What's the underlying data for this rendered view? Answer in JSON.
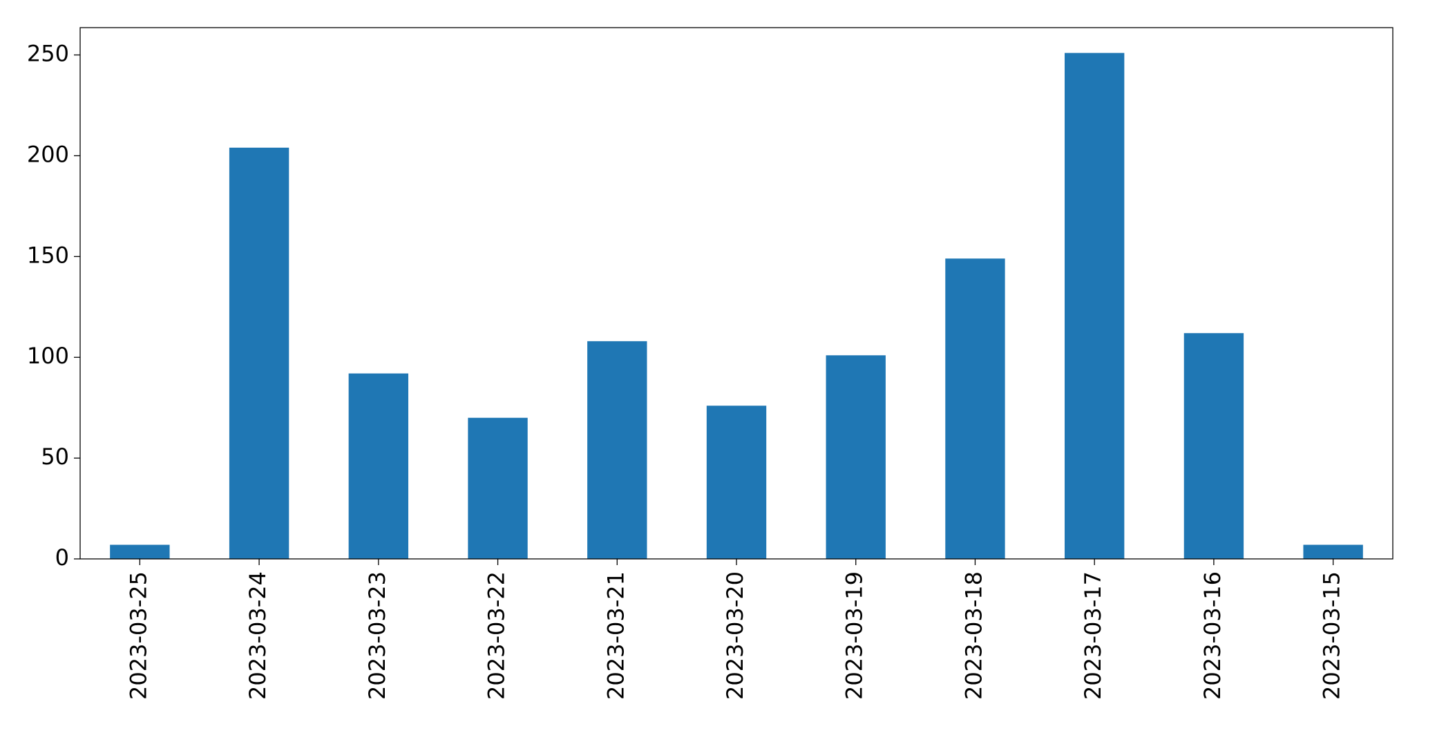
{
  "chart_data": {
    "type": "bar",
    "categories": [
      "2023-03-25",
      "2023-03-24",
      "2023-03-23",
      "2023-03-22",
      "2023-03-21",
      "2023-03-20",
      "2023-03-19",
      "2023-03-18",
      "2023-03-17",
      "2023-03-16",
      "2023-03-15"
    ],
    "values": [
      7,
      204,
      92,
      70,
      108,
      76,
      101,
      149,
      251,
      112,
      7
    ],
    "color": "#1f77b4",
    "ylim": [
      0,
      263.55
    ],
    "yticks": [
      0,
      50,
      100,
      150,
      200,
      250
    ],
    "grid": false
  }
}
